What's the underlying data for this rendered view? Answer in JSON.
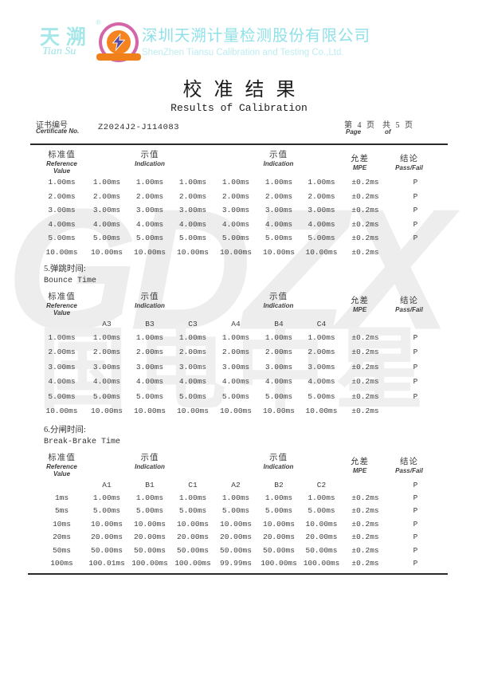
{
  "brand": {
    "logo_cn": "天溯",
    "logo_script": "Tian Su",
    "reg_mark": "®",
    "company_cn": "深圳天溯计量检测股份有限公司",
    "company_en": "ShenZhen Tiansu Calibration and Testing Co.,Ltd."
  },
  "title": {
    "cn": "校准结果",
    "en": "Results of Calibration"
  },
  "certificate": {
    "label_cn": "证书编号",
    "label_en": "Certificate No.",
    "number": "Z2024J2-J114083",
    "page_label": "第 4 页",
    "page_en": "Page",
    "of_label": "共 5 页",
    "of_en": "of"
  },
  "table_headers": {
    "ref_cn": "标准值",
    "ref_en1": "Reference",
    "ref_en2": "Value",
    "ind_cn": "示值",
    "ind_en": "Indication",
    "mpe_cn": "允差",
    "mpe_en": "MPE",
    "res_cn": "结论",
    "res_en": "Pass/Fail"
  },
  "tables": [
    {
      "section_cn": "",
      "section_en": "",
      "sub_labels": [],
      "sub_result": "",
      "rows": [
        {
          "ref": "1.00ms",
          "values": [
            "1.00ms",
            "1.00ms",
            "1.00ms",
            "1.00ms",
            "1.00ms",
            "1.00ms"
          ],
          "mpe": "±0.2ms",
          "result": "P"
        },
        {
          "ref": "2.00ms",
          "values": [
            "2.00ms",
            "2.00ms",
            "2.00ms",
            "2.00ms",
            "2.00ms",
            "2.00ms"
          ],
          "mpe": "±0.2ms",
          "result": "P"
        },
        {
          "ref": "3.00ms",
          "values": [
            "3.00ms",
            "3.00ms",
            "3.00ms",
            "3.00ms",
            "3.00ms",
            "3.00ms"
          ],
          "mpe": "±0.2ms",
          "result": "P"
        },
        {
          "ref": "4.00ms",
          "values": [
            "4.00ms",
            "4.00ms",
            "4.00ms",
            "4.00ms",
            "4.00ms",
            "4.00ms"
          ],
          "mpe": "±0.2ms",
          "result": "P"
        },
        {
          "ref": "5.00ms",
          "values": [
            "5.00ms",
            "5.00ms",
            "5.00ms",
            "5.00ms",
            "5.00ms",
            "5.00ms"
          ],
          "mpe": "±0.2ms",
          "result": "P"
        },
        {
          "ref": "10.00ms",
          "values": [
            "10.00ms",
            "10.00ms",
            "10.00ms",
            "10.00ms",
            "10.00ms",
            "10.00ms"
          ],
          "mpe": "±0.2ms",
          "result": ""
        }
      ]
    },
    {
      "section_cn": "5.弹跳时间:",
      "section_en": "Bounce Time",
      "sub_labels": [
        "A3",
        "B3",
        "C3",
        "A4",
        "B4",
        "C4"
      ],
      "sub_result": "",
      "rows": [
        {
          "ref": "1.00ms",
          "values": [
            "1.00ms",
            "1.00ms",
            "1.00ms",
            "1.00ms",
            "1.00ms",
            "1.00ms"
          ],
          "mpe": "±0.2ms",
          "result": "P"
        },
        {
          "ref": "2.00ms",
          "values": [
            "2.00ms",
            "2.00ms",
            "2.00ms",
            "2.00ms",
            "2.00ms",
            "2.00ms"
          ],
          "mpe": "±0.2ms",
          "result": "P"
        },
        {
          "ref": "3.00ms",
          "values": [
            "3.00ms",
            "3.00ms",
            "3.00ms",
            "3.00ms",
            "3.00ms",
            "3.00ms"
          ],
          "mpe": "±0.2ms",
          "result": "P"
        },
        {
          "ref": "4.00ms",
          "values": [
            "4.00ms",
            "4.00ms",
            "4.00ms",
            "4.00ms",
            "4.00ms",
            "4.00ms"
          ],
          "mpe": "±0.2ms",
          "result": "P"
        },
        {
          "ref": "5.00ms",
          "values": [
            "5.00ms",
            "5.00ms",
            "5.00ms",
            "5.00ms",
            "5.00ms",
            "5.00ms"
          ],
          "mpe": "±0.2ms",
          "result": "P"
        },
        {
          "ref": "10.00ms",
          "values": [
            "10.00ms",
            "10.00ms",
            "10.00ms",
            "10.00ms",
            "10.00ms",
            "10.00ms"
          ],
          "mpe": "±0.2ms",
          "result": ""
        }
      ]
    },
    {
      "section_cn": "6.分闸时间:",
      "section_en": "Break-Brake Time",
      "sub_labels": [
        "A1",
        "B1",
        "C1",
        "A2",
        "B2",
        "C2"
      ],
      "sub_result": "P",
      "rows": [
        {
          "ref": "1ms",
          "values": [
            "1.00ms",
            "1.00ms",
            "1.00ms",
            "1.00ms",
            "1.00ms",
            "1.00ms"
          ],
          "mpe": "±0.2ms",
          "result": "P"
        },
        {
          "ref": "5ms",
          "values": [
            "5.00ms",
            "5.00ms",
            "5.00ms",
            "5.00ms",
            "5.00ms",
            "5.00ms"
          ],
          "mpe": "±0.2ms",
          "result": "P"
        },
        {
          "ref": "10ms",
          "values": [
            "10.00ms",
            "10.00ms",
            "10.00ms",
            "10.00ms",
            "10.00ms",
            "10.00ms"
          ],
          "mpe": "±0.2ms",
          "result": "P"
        },
        {
          "ref": "20ms",
          "values": [
            "20.00ms",
            "20.00ms",
            "20.00ms",
            "20.00ms",
            "20.00ms",
            "20.00ms"
          ],
          "mpe": "±0.2ms",
          "result": "P"
        },
        {
          "ref": "50ms",
          "values": [
            "50.00ms",
            "50.00ms",
            "50.00ms",
            "50.00ms",
            "50.00ms",
            "50.00ms"
          ],
          "mpe": "±0.2ms",
          "result": "P"
        },
        {
          "ref": "100ms",
          "values": [
            "100.01ms",
            "100.00ms",
            "100.00ms",
            "99.99ms",
            "100.00ms",
            "100.00ms"
          ],
          "mpe": "±0.2ms",
          "result": "P"
        }
      ]
    }
  ],
  "watermark": {
    "line1": "GDZX",
    "line2": "国电中星"
  }
}
